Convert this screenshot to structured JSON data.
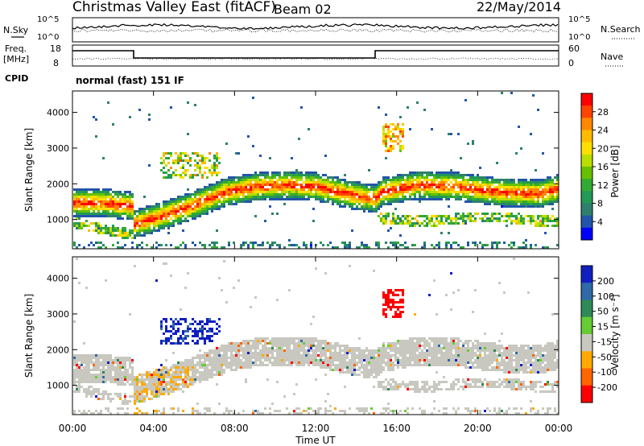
{
  "header": {
    "site": "Christmas Valley East (fitACF)",
    "beam": "Beam 02",
    "date": "22/May/2014"
  },
  "top_strip": {
    "nsky_label": "N.Sky",
    "nsky_ticks": [
      "10^5",
      "10^0"
    ],
    "nsearch_label": "N.Search",
    "nsearch_ticks": [
      "10^5",
      "10^0"
    ],
    "freq_label": "Freq.",
    "freq_unit": "[MHz]",
    "freq_ticks": [
      "18",
      "8"
    ],
    "nave_label": "Nave",
    "nave_ticks": [
      "60",
      "0"
    ],
    "cpid_label": "CPID",
    "cpid_value": "normal (fast) 151 IF"
  },
  "chart_data": [
    {
      "type": "heatmap",
      "name": "power-panel",
      "ylabel": "Slant Range [km]",
      "xlabel": "",
      "xlim_hours": [
        0,
        24
      ],
      "ylim": [
        180,
        4600
      ],
      "x_ticks": [
        "00:00",
        "04:00",
        "08:00",
        "12:00",
        "16:00",
        "20:00",
        "00:00"
      ],
      "y_ticks": [
        1000,
        2000,
        3000,
        4000
      ],
      "colorbar": {
        "label": "Power [dB]",
        "ticks": [
          "28",
          "24",
          "20",
          "16",
          "12",
          "8",
          "4"
        ],
        "colors": [
          "#ff0000",
          "#ff4400",
          "#ff8800",
          "#ffbb00",
          "#ffe000",
          "#bbdd00",
          "#66c000",
          "#33aa33",
          "#229955",
          "#2f7f6f",
          "#2255aa",
          "#0000ff"
        ]
      },
      "dominant_echo_band_km": [
        {
          "t": 0.0,
          "r": 1500
        },
        {
          "t": 1.5,
          "r": 1500
        },
        {
          "t": 2.9,
          "r": 1400
        },
        {
          "t": 3.0,
          "r": 900
        },
        {
          "t": 4.5,
          "r": 1150
        },
        {
          "t": 6.0,
          "r": 1450
        },
        {
          "t": 7.5,
          "r": 1800
        },
        {
          "t": 9.0,
          "r": 1950
        },
        {
          "t": 10.5,
          "r": 2000
        },
        {
          "t": 12.0,
          "r": 1950
        },
        {
          "t": 13.5,
          "r": 1750
        },
        {
          "t": 14.9,
          "r": 1600
        },
        {
          "t": 15.2,
          "r": 1800
        },
        {
          "t": 17.0,
          "r": 2000
        },
        {
          "t": 19.0,
          "r": 1950
        },
        {
          "t": 21.0,
          "r": 1800
        },
        {
          "t": 23.0,
          "r": 1750
        },
        {
          "t": 24.0,
          "r": 1900
        }
      ]
    },
    {
      "type": "heatmap",
      "name": "velocity-panel",
      "ylabel": "Slant Range [km]",
      "xlabel": "Time UT",
      "xlim_hours": [
        0,
        24
      ],
      "ylim": [
        180,
        4600
      ],
      "x_ticks": [
        "00:00",
        "04:00",
        "08:00",
        "12:00",
        "16:00",
        "20:00",
        "00:00"
      ],
      "y_ticks": [
        1000,
        2000,
        3000,
        4000
      ],
      "colorbar": {
        "label": "Velocity [m s⁻¹]",
        "ticks": [
          "200",
          "100",
          "50",
          "15",
          "-15",
          "-50",
          "-100",
          "-200"
        ],
        "colors": [
          "#1020c0",
          "#2f6aa8",
          "#2e8b57",
          "#66cc33",
          "#c8c8c0",
          "#ffaa00",
          "#ff6600",
          "#ff0000"
        ]
      },
      "notable_features": [
        {
          "desc": "blue",
          "t_range": [
            4.3,
            7.2
          ],
          "r_range": [
            2200,
            2900
          ]
        },
        {
          "desc": "red",
          "t_range": [
            15.2,
            16.2
          ],
          "r_range": [
            2900,
            3700
          ]
        },
        {
          "desc": "ground scatter",
          "t_range": [
            0,
            24
          ],
          "r_range": [
            1500,
            2300
          ]
        }
      ]
    }
  ]
}
